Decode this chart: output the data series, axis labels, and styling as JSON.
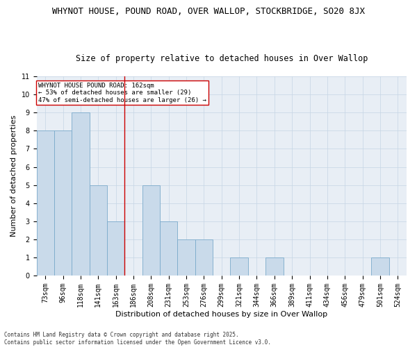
{
  "title_line1": "WHYNOT HOUSE, POUND ROAD, OVER WALLOP, STOCKBRIDGE, SO20 8JX",
  "title_line2": "Size of property relative to detached houses in Over Wallop",
  "xlabel": "Distribution of detached houses by size in Over Wallop",
  "ylabel": "Number of detached properties",
  "categories": [
    "73sqm",
    "96sqm",
    "118sqm",
    "141sqm",
    "163sqm",
    "186sqm",
    "208sqm",
    "231sqm",
    "253sqm",
    "276sqm",
    "299sqm",
    "321sqm",
    "344sqm",
    "366sqm",
    "389sqm",
    "411sqm",
    "434sqm",
    "456sqm",
    "479sqm",
    "501sqm",
    "524sqm"
  ],
  "values": [
    8,
    8,
    9,
    5,
    3,
    0,
    5,
    3,
    2,
    2,
    0,
    1,
    0,
    1,
    0,
    0,
    0,
    0,
    0,
    1,
    0
  ],
  "bar_color": "#c9daea",
  "bar_edge_color": "#7aaacb",
  "grid_color": "#c5d5e5",
  "background_color": "#e8eef5",
  "annotation_box_color": "#cc0000",
  "vline_color": "#cc0000",
  "vline_position": 4.5,
  "annotation_text": "WHYNOT HOUSE POUND ROAD: 162sqm\n← 53% of detached houses are smaller (29)\n47% of semi-detached houses are larger (26) →",
  "ylim": [
    0,
    11
  ],
  "yticks": [
    0,
    1,
    2,
    3,
    4,
    5,
    6,
    7,
    8,
    9,
    10,
    11
  ],
  "footer": "Contains HM Land Registry data © Crown copyright and database right 2025.\nContains public sector information licensed under the Open Government Licence v3.0.",
  "title_fontsize": 9,
  "subtitle_fontsize": 8.5,
  "axis_label_fontsize": 8,
  "tick_fontsize": 7,
  "annotation_fontsize": 6.5,
  "footer_fontsize": 5.5
}
